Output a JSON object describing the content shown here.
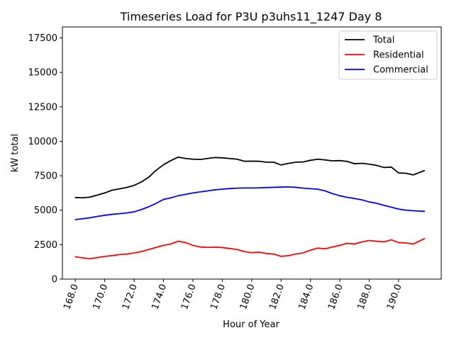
{
  "chart_data": {
    "type": "line",
    "title": "Timeseries Load for P3U p3uhs11_1247  Day 8",
    "xlabel": "Hour of Year",
    "ylabel": "kW total",
    "xlim": [
      167.12,
      192.9
    ],
    "ylim": [
      0,
      18300
    ],
    "grid": false,
    "legend_position": "top-right",
    "x_ticks": [
      168,
      170,
      172,
      174,
      176,
      178,
      180,
      182,
      184,
      186,
      188,
      190
    ],
    "x_tick_labels": [
      "168.0",
      "170.0",
      "172.0",
      "174.0",
      "176.0",
      "178.0",
      "180.0",
      "182.0",
      "184.0",
      "186.0",
      "188.0",
      "190.0"
    ],
    "y_ticks": [
      0,
      2500,
      5000,
      7500,
      10000,
      12500,
      15000,
      17500
    ],
    "y_tick_labels": [
      "0",
      "2500",
      "5000",
      "7500",
      "10000",
      "12500",
      "15000",
      "17500"
    ],
    "x": [
      168.0,
      168.5,
      169.0,
      169.5,
      170.0,
      170.5,
      171.0,
      171.5,
      172.0,
      172.5,
      173.0,
      173.5,
      174.0,
      174.5,
      175.0,
      175.5,
      176.0,
      176.5,
      177.0,
      177.5,
      178.0,
      178.5,
      179.0,
      179.5,
      180.0,
      180.5,
      181.0,
      181.5,
      182.0,
      182.5,
      183.0,
      183.5,
      184.0,
      184.5,
      185.0,
      185.5,
      186.0,
      186.5,
      187.0,
      187.5,
      188.0,
      188.5,
      189.0,
      189.5,
      190.0,
      190.5,
      191.0,
      191.75
    ],
    "series": [
      {
        "name": "Total",
        "color": "#000000",
        "values": [
          5920,
          5900,
          5950,
          6100,
          6250,
          6450,
          6550,
          6650,
          6800,
          7050,
          7400,
          7900,
          8300,
          8600,
          8850,
          8750,
          8700,
          8680,
          8750,
          8820,
          8800,
          8750,
          8700,
          8550,
          8560,
          8550,
          8480,
          8480,
          8280,
          8400,
          8480,
          8500,
          8620,
          8700,
          8650,
          8580,
          8600,
          8540,
          8370,
          8400,
          8340,
          8250,
          8100,
          8130,
          7700,
          7680,
          7560,
          7870
        ]
      },
      {
        "name": "Residential",
        "color": "#ff0000",
        "values": [
          1620,
          1540,
          1480,
          1560,
          1650,
          1700,
          1780,
          1820,
          1900,
          2000,
          2150,
          2300,
          2450,
          2550,
          2750,
          2650,
          2450,
          2330,
          2300,
          2320,
          2290,
          2220,
          2150,
          2000,
          1920,
          1960,
          1860,
          1820,
          1650,
          1700,
          1820,
          1900,
          2100,
          2250,
          2200,
          2330,
          2450,
          2600,
          2550,
          2700,
          2800,
          2750,
          2700,
          2850,
          2650,
          2620,
          2550,
          2930
        ]
      },
      {
        "name": "Commercial",
        "color": "#0000ff",
        "values": [
          4320,
          4380,
          4450,
          4550,
          4630,
          4700,
          4750,
          4800,
          4880,
          5050,
          5250,
          5500,
          5780,
          5900,
          6050,
          6150,
          6250,
          6330,
          6400,
          6480,
          6530,
          6570,
          6600,
          6610,
          6610,
          6620,
          6640,
          6660,
          6680,
          6690,
          6660,
          6600,
          6560,
          6520,
          6400,
          6200,
          6050,
          5930,
          5850,
          5750,
          5600,
          5500,
          5350,
          5220,
          5080,
          5000,
          4960,
          4920
        ]
      }
    ]
  }
}
